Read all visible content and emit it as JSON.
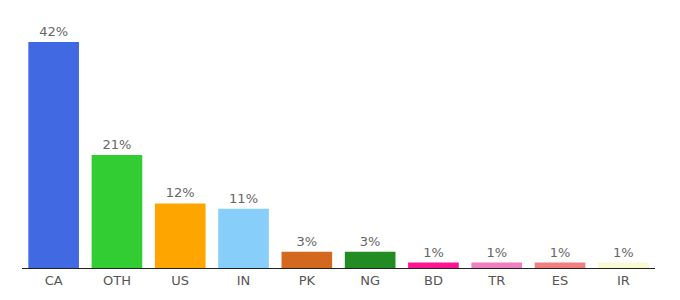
{
  "chart_data": {
    "type": "bar",
    "categories": [
      "CA",
      "OTH",
      "US",
      "IN",
      "PK",
      "NG",
      "BD",
      "TR",
      "ES",
      "IR"
    ],
    "values": [
      42,
      21,
      12,
      11,
      3,
      3,
      1,
      1,
      1,
      1
    ],
    "value_labels": [
      "42%",
      "21%",
      "12%",
      "11%",
      "3%",
      "3%",
      "1%",
      "1%",
      "1%",
      "1%"
    ],
    "colors": [
      "#4169e1",
      "#32cd32",
      "#ffa500",
      "#87cefa",
      "#d2691e",
      "#228b22",
      "#ff1493",
      "#f07fc0",
      "#f08080",
      "#fafad2"
    ],
    "data_labels": true,
    "tick_labels": "x",
    "grid": false
  }
}
